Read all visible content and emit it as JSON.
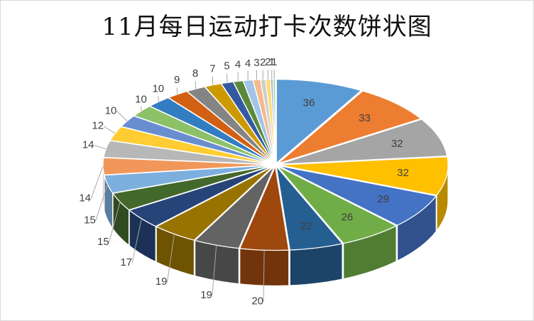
{
  "chart_data": {
    "type": "pie",
    "title": "11月每日运动打卡次数饼状图",
    "values": [
      36,
      33,
      32,
      32,
      29,
      26,
      22,
      20,
      19,
      19,
      17,
      15,
      15,
      14,
      14,
      12,
      10,
      10,
      10,
      9,
      8,
      7,
      5,
      4,
      4,
      3,
      2,
      2,
      1,
      1
    ],
    "colors": [
      "#5B9BD5",
      "#ED7D31",
      "#A5A5A5",
      "#FFC000",
      "#4472C4",
      "#70AD47",
      "#255E91",
      "#9E480E",
      "#636363",
      "#997300",
      "#264478",
      "#43682B",
      "#7CAFDD",
      "#F1975A",
      "#B7B7B7",
      "#FFCD33",
      "#698ED0",
      "#8CC168",
      "#327DC2",
      "#D26012",
      "#848484",
      "#CC9A00",
      "#335AA1",
      "#5A8A39",
      "#A3C4E8",
      "#F5B98E",
      "#CDCDCD",
      "#FFDC71",
      "#A1B6E2",
      "#B3D79E"
    ],
    "style": "3d-exploded",
    "legend": "none"
  }
}
